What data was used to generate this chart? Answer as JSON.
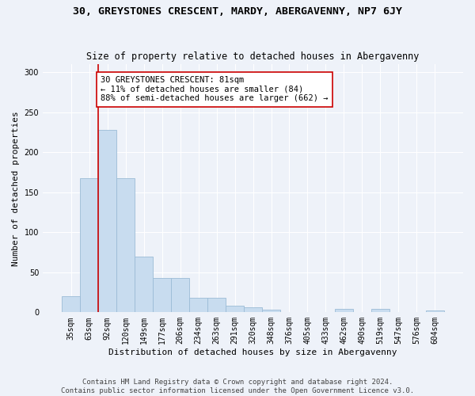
{
  "title": "30, GREYSTONES CRESCENT, MARDY, ABERGAVENNY, NP7 6JY",
  "subtitle": "Size of property relative to detached houses in Abergavenny",
  "xlabel": "Distribution of detached houses by size in Abergavenny",
  "ylabel": "Number of detached properties",
  "categories": [
    "35sqm",
    "63sqm",
    "92sqm",
    "120sqm",
    "149sqm",
    "177sqm",
    "206sqm",
    "234sqm",
    "263sqm",
    "291sqm",
    "320sqm",
    "348sqm",
    "376sqm",
    "405sqm",
    "433sqm",
    "462sqm",
    "490sqm",
    "519sqm",
    "547sqm",
    "576sqm",
    "604sqm"
  ],
  "values": [
    20,
    168,
    228,
    168,
    70,
    43,
    43,
    18,
    18,
    8,
    6,
    3,
    0,
    0,
    0,
    4,
    0,
    4,
    0,
    0,
    2
  ],
  "bar_color": "#c8dcef",
  "bar_edge_color": "#9bbbd6",
  "property_line_color": "#cc0000",
  "annotation_text": "30 GREYSTONES CRESCENT: 81sqm\n← 11% of detached houses are smaller (84)\n88% of semi-detached houses are larger (662) →",
  "annotation_box_color": "#ffffff",
  "annotation_box_edge_color": "#cc0000",
  "ylim": [
    0,
    310
  ],
  "yticks": [
    0,
    50,
    100,
    150,
    200,
    250,
    300
  ],
  "footer": "Contains HM Land Registry data © Crown copyright and database right 2024.\nContains public sector information licensed under the Open Government Licence v3.0.",
  "bg_color": "#eef2f9",
  "grid_color": "#ffffff",
  "title_fontsize": 9.5,
  "subtitle_fontsize": 8.5,
  "label_fontsize": 8,
  "tick_fontsize": 7,
  "footer_fontsize": 6.5,
  "annot_fontsize": 7.5
}
